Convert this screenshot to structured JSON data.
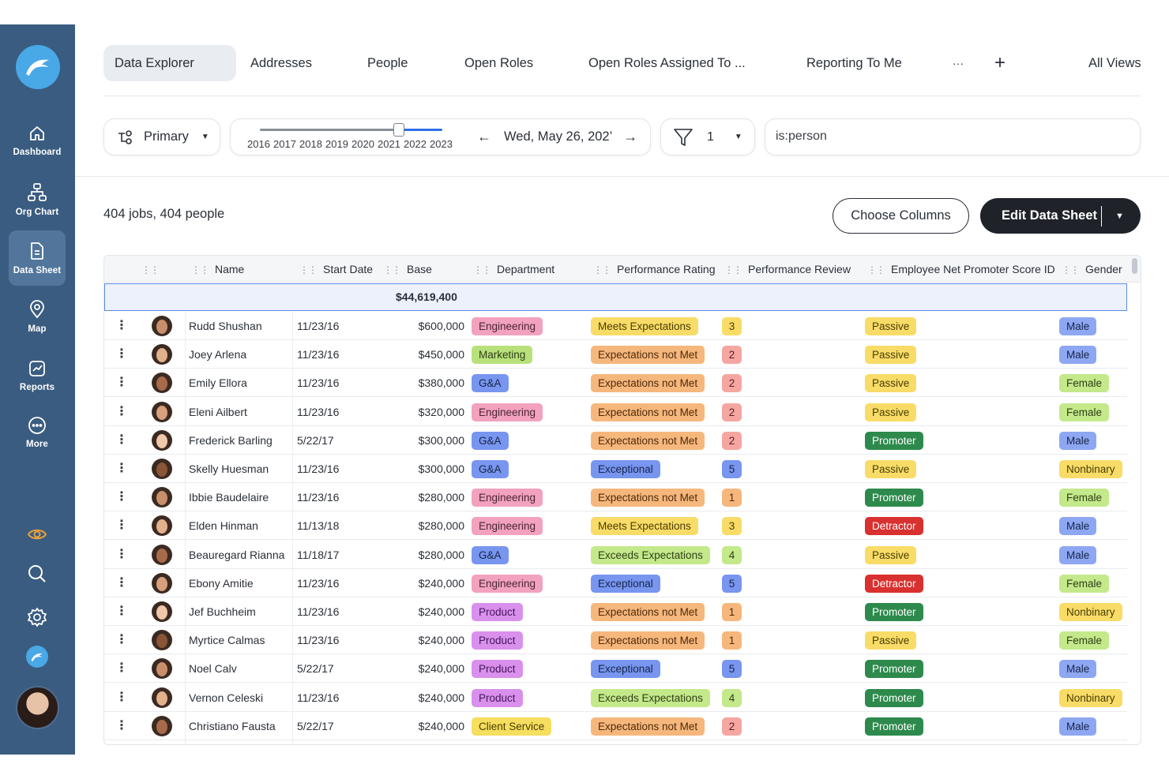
{
  "sidebar": {
    "items": [
      {
        "label": "Dashboard",
        "icon": "home-icon"
      },
      {
        "label": "Org Chart",
        "icon": "org-chart-icon"
      },
      {
        "label": "Data Sheet",
        "icon": "document-icon"
      },
      {
        "label": "Map",
        "icon": "map-pin-icon"
      },
      {
        "label": "Reports",
        "icon": "chart-icon"
      },
      {
        "label": "More",
        "icon": "more-circle-icon"
      }
    ],
    "active": "Data Sheet"
  },
  "tabs": {
    "items": [
      "Data Explorer",
      "Addresses",
      "People",
      "Open Roles",
      "Open Roles Assigned To ...",
      "Reporting To Me"
    ],
    "active": "Data Explorer",
    "more": "···",
    "add": "+",
    "all_views": "All Views"
  },
  "toolbar": {
    "primary_label": "Primary",
    "years": [
      "2016",
      "2017",
      "2018",
      "2019",
      "2020",
      "2021",
      "2022",
      "2023"
    ],
    "date": "Wed, May 26, 202’",
    "filter_count": "1",
    "search_value": "is:person"
  },
  "summary": "404 jobs, 404 people",
  "buttons": {
    "choose_columns": "Choose Columns",
    "edit_data_sheet": "Edit Data Sheet"
  },
  "table": {
    "columns": [
      "Name",
      "Start Date",
      "Base",
      "Department",
      "Performance Rating",
      "Performance Review",
      "Employee Net Promoter Score ID",
      "Gender"
    ],
    "total_base": "$44,619,400",
    "rows": [
      {
        "name": "Rudd Shushan",
        "start": "11/23/16",
        "base": "$600,000",
        "dept": "Engineering",
        "rating": "Meets Expectations",
        "review": "3",
        "enps": "Passive",
        "gender": "Male"
      },
      {
        "name": "Joey Arlena",
        "start": "11/23/16",
        "base": "$450,000",
        "dept": "Marketing",
        "rating": "Expectations not Met",
        "review": "2",
        "enps": "Passive",
        "gender": "Male"
      },
      {
        "name": "Emily Ellora",
        "start": "11/23/16",
        "base": "$380,000",
        "dept": "G&A",
        "rating": "Expectations not Met",
        "review": "2",
        "enps": "Passive",
        "gender": "Female"
      },
      {
        "name": "Eleni Ailbert",
        "start": "11/23/16",
        "base": "$320,000",
        "dept": "Engineering",
        "rating": "Expectations not Met",
        "review": "2",
        "enps": "Passive",
        "gender": "Female"
      },
      {
        "name": "Frederick Barling",
        "start": "5/22/17",
        "base": "$300,000",
        "dept": "G&A",
        "rating": "Expectations not Met",
        "review": "2",
        "enps": "Promoter",
        "gender": "Male"
      },
      {
        "name": "Skelly Huesman",
        "start": "11/23/16",
        "base": "$300,000",
        "dept": "G&A",
        "rating": "Exceptional",
        "review": "5",
        "enps": "Passive",
        "gender": "Nonbinary"
      },
      {
        "name": "Ibbie Baudelaire",
        "start": "11/23/16",
        "base": "$280,000",
        "dept": "Engineering",
        "rating": "Expectations not Met",
        "review": "1",
        "enps": "Promoter",
        "gender": "Female"
      },
      {
        "name": "Elden Hinman",
        "start": "11/13/18",
        "base": "$280,000",
        "dept": "Engineering",
        "rating": "Meets Expectations",
        "review": "3",
        "enps": "Detractor",
        "gender": "Male"
      },
      {
        "name": "Beauregard Rianna",
        "start": "11/18/17",
        "base": "$280,000",
        "dept": "G&A",
        "rating": "Exceeds Expectations",
        "review": "4",
        "enps": "Passive",
        "gender": "Male"
      },
      {
        "name": "Ebony Amitie",
        "start": "11/23/16",
        "base": "$240,000",
        "dept": "Engineering",
        "rating": "Exceptional",
        "review": "5",
        "enps": "Detractor",
        "gender": "Female"
      },
      {
        "name": "Jef Buchheim",
        "start": "11/23/16",
        "base": "$240,000",
        "dept": "Product",
        "rating": "Expectations not Met",
        "review": "1",
        "enps": "Promoter",
        "gender": "Nonbinary"
      },
      {
        "name": "Myrtice Calmas",
        "start": "11/23/16",
        "base": "$240,000",
        "dept": "Product",
        "rating": "Expectations not Met",
        "review": "1",
        "enps": "Passive",
        "gender": "Female"
      },
      {
        "name": "Noel Calv",
        "start": "5/22/17",
        "base": "$240,000",
        "dept": "Product",
        "rating": "Exceptional",
        "review": "5",
        "enps": "Promoter",
        "gender": "Male"
      },
      {
        "name": "Vernon Celeski",
        "start": "11/23/16",
        "base": "$240,000",
        "dept": "Product",
        "rating": "Exceeds Expectations",
        "review": "4",
        "enps": "Promoter",
        "gender": "Nonbinary"
      },
      {
        "name": "Christiano Fausta",
        "start": "5/22/17",
        "base": "$240,000",
        "dept": "Client Service",
        "rating": "Expectations not Met",
        "review": "2",
        "enps": "Promoter",
        "gender": "Male"
      }
    ]
  },
  "colors": {
    "sidebar": "#3a5c80",
    "accent_blue": "#2f6fe6",
    "promoter": "#2d8a4c",
    "detractor": "#d8312f"
  }
}
